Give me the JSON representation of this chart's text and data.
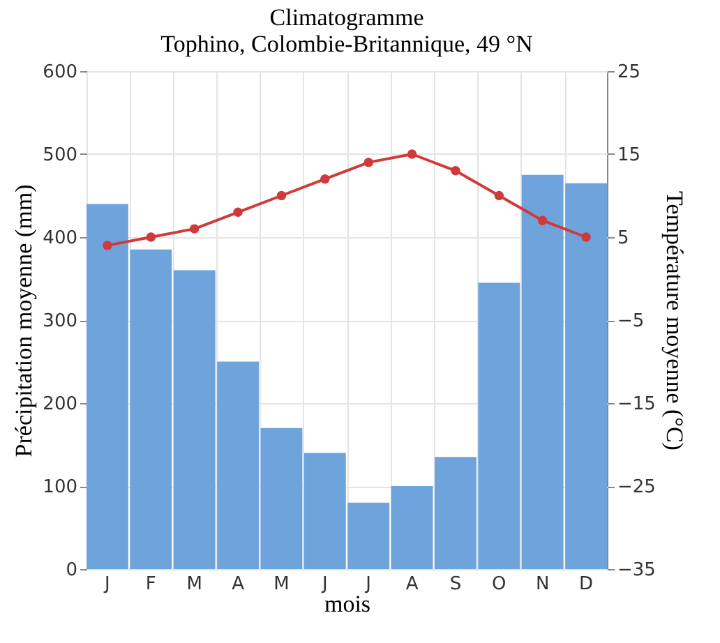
{
  "chart_data": {
    "type": "bar",
    "title": "Climatogramme",
    "subtitle": "Tophino, Colombie-Britannique, 49 °N",
    "xlabel": "mois",
    "ylabel": "Précipitation moyenne (mm)",
    "y2label": "Température moyenne (°C)",
    "categories": [
      "J",
      "F",
      "M",
      "A",
      "M",
      "J",
      "J",
      "A",
      "S",
      "O",
      "N",
      "D"
    ],
    "series": [
      {
        "color": "#6fa3dc",
        "values": [
          440,
          385,
          360,
          250,
          170,
          140,
          80,
          100,
          135,
          345,
          475,
          465
        ]
      },
      {
        "type": "line",
        "axis": "y2",
        "color": "#d03a3a",
        "values": [
          4,
          5,
          6,
          8,
          10,
          12,
          14,
          15,
          13,
          10,
          7,
          5
        ]
      }
    ],
    "ylim": [
      0,
      600
    ],
    "yticks": [
      0,
      100,
      200,
      300,
      400,
      500,
      600
    ],
    "y2lim": [
      -35,
      25
    ],
    "y2ticks": [
      -35,
      -25,
      -15,
      -5,
      5,
      15,
      25
    ],
    "grid": true,
    "marker": "circle",
    "line_style": "solid"
  }
}
